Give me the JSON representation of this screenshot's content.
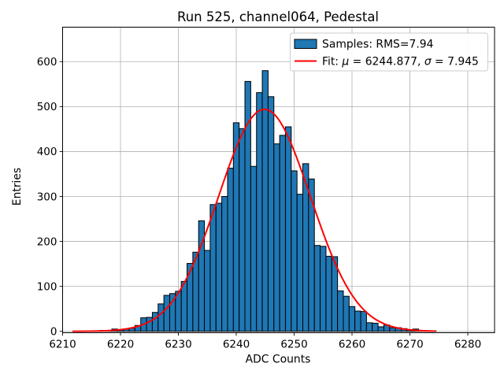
{
  "chart_data": {
    "type": "bar",
    "subtype": "histogram-with-gaussian-fit",
    "title": "Run 525, channel064, Pedestal",
    "xlabel": "ADC Counts",
    "ylabel": "Entries",
    "grid": true,
    "x_ticks": [
      6210,
      6220,
      6230,
      6240,
      6250,
      6260,
      6270,
      6280
    ],
    "y_ticks": [
      0,
      100,
      200,
      300,
      400,
      500,
      600
    ],
    "xlim": [
      6210,
      6284.6
    ],
    "ylim": [
      -3,
      678
    ],
    "bin_width": 1,
    "bin_centers": [
      6216,
      6217,
      6218,
      6219,
      6220,
      6221,
      6222,
      6223,
      6224,
      6225,
      6226,
      6227,
      6228,
      6229,
      6230,
      6231,
      6232,
      6233,
      6234,
      6235,
      6236,
      6237,
      6238,
      6239,
      6240,
      6241,
      6242,
      6243,
      6244,
      6245,
      6246,
      6247,
      6248,
      6249,
      6250,
      6251,
      6252,
      6253,
      6254,
      6255,
      6256,
      6257,
      6258,
      6259,
      6260,
      6261,
      6262,
      6263,
      6264,
      6265,
      6266,
      6267,
      6268,
      6269,
      6270,
      6271,
      6272,
      6273,
      6274
    ],
    "counts": [
      1,
      2,
      2,
      5,
      3,
      5,
      7,
      13,
      30,
      31,
      42,
      61,
      80,
      84,
      89,
      111,
      151,
      176,
      246,
      180,
      282,
      285,
      300,
      363,
      464,
      451,
      556,
      367,
      531,
      580,
      522,
      417,
      436,
      455,
      357,
      305,
      373,
      339,
      191,
      189,
      167,
      166,
      90,
      78,
      55,
      45,
      44,
      19,
      18,
      10,
      14,
      8,
      8,
      6,
      3,
      5,
      2,
      1,
      1
    ],
    "series": [
      {
        "name": "Samples: RMS=7.94",
        "kind": "histogram",
        "fill_color": "#1f77b4",
        "edge_color": "#000000"
      },
      {
        "name": "Fit: mu = 6244.877, sigma = 7.945",
        "kind": "gaussian-fit",
        "color": "#ff0000",
        "mu": 6244.877,
        "sigma": 7.945,
        "amplitude": 494,
        "x_range": [
          6211.8,
          6274.3
        ]
      }
    ],
    "stats": {
      "rms": "7.94",
      "mu": "6244.877",
      "sigma": "7.945"
    },
    "colors": {
      "grid": "#b0b0b0",
      "axes": "#000000",
      "legend_border": "#cccccc",
      "background": "#ffffff"
    },
    "legend": {
      "position": "upper right",
      "entries": [
        {
          "swatch": "patch",
          "label": "Samples: RMS=7.94"
        },
        {
          "swatch": "line",
          "parts": [
            {
              "text": "Fit: "
            },
            {
              "text": "μ",
              "italic": true
            },
            {
              "text": " = 6244.877, "
            },
            {
              "text": "σ",
              "italic": true
            },
            {
              "text": " = 7.945"
            }
          ]
        }
      ]
    }
  }
}
